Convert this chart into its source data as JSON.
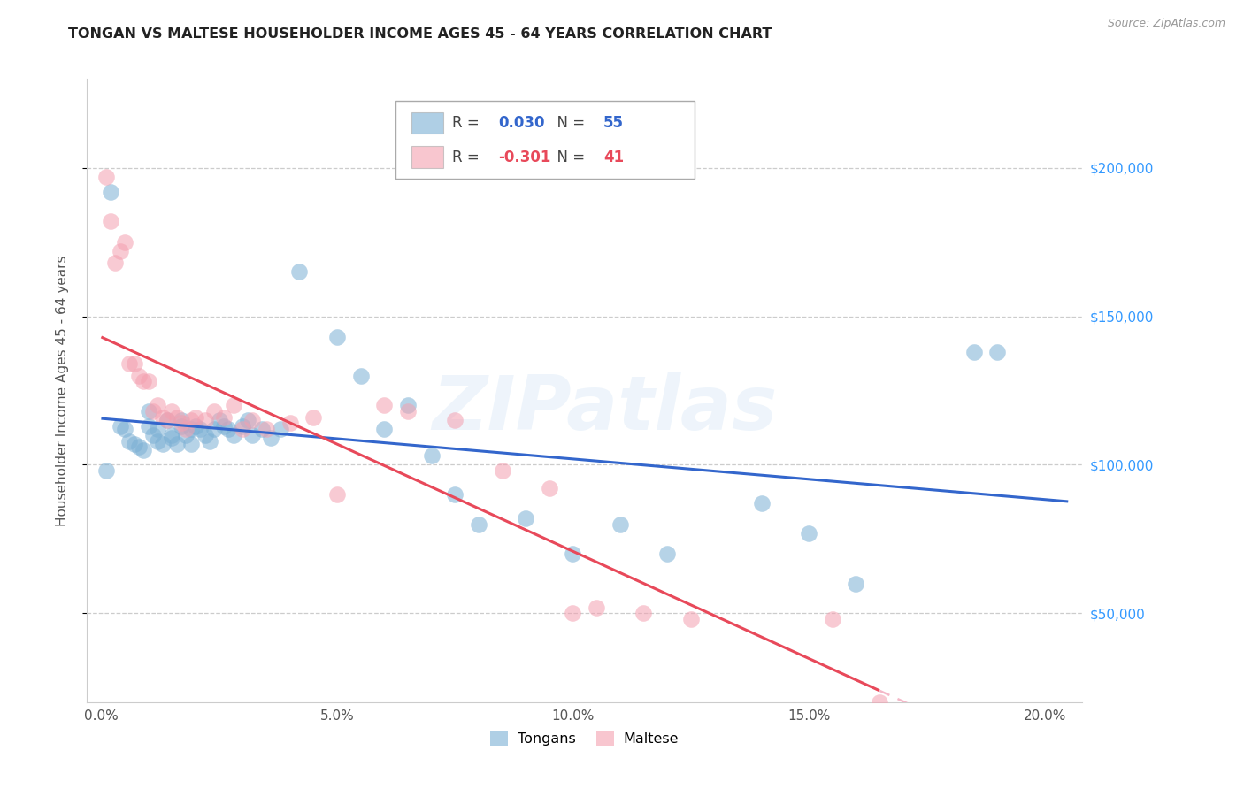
{
  "title": "TONGAN VS MALTESE HOUSEHOLDER INCOME AGES 45 - 64 YEARS CORRELATION CHART",
  "source": "Source: ZipAtlas.com",
  "xlabel_ticks": [
    "0.0%",
    "5.0%",
    "10.0%",
    "15.0%",
    "20.0%"
  ],
  "xlabel_vals": [
    0.0,
    0.05,
    0.1,
    0.15,
    0.2
  ],
  "ylabel": "Householder Income Ages 45 - 64 years",
  "ylabel_ticks": [
    "$50,000",
    "$100,000",
    "$150,000",
    "$200,000"
  ],
  "ylabel_vals": [
    50000,
    100000,
    150000,
    200000
  ],
  "ylim": [
    20000,
    230000
  ],
  "xlim": [
    -0.003,
    0.208
  ],
  "tongan_R": 0.03,
  "tongan_N": 55,
  "maltese_R": -0.301,
  "maltese_N": 41,
  "tongan_color": "#7bafd4",
  "maltese_color": "#f4a0b0",
  "tongan_line_color": "#3366cc",
  "maltese_line_color": "#e8495a",
  "maltese_dash_color": "#f4b8c8",
  "watermark": "ZIPatlas",
  "tongan_x": [
    0.001,
    0.002,
    0.004,
    0.005,
    0.006,
    0.007,
    0.008,
    0.009,
    0.01,
    0.01,
    0.011,
    0.012,
    0.012,
    0.013,
    0.014,
    0.015,
    0.015,
    0.016,
    0.017,
    0.017,
    0.018,
    0.019,
    0.019,
    0.02,
    0.021,
    0.022,
    0.023,
    0.024,
    0.025,
    0.026,
    0.027,
    0.028,
    0.03,
    0.031,
    0.032,
    0.034,
    0.036,
    0.038,
    0.042,
    0.05,
    0.055,
    0.06,
    0.065,
    0.07,
    0.075,
    0.08,
    0.09,
    0.1,
    0.11,
    0.12,
    0.14,
    0.15,
    0.16,
    0.185,
    0.19
  ],
  "tongan_y": [
    98000,
    192000,
    113000,
    112000,
    108000,
    107000,
    106000,
    105000,
    113000,
    118000,
    110000,
    108000,
    112000,
    107000,
    115000,
    109000,
    110000,
    107000,
    113000,
    115000,
    110000,
    107000,
    112000,
    113000,
    112000,
    110000,
    108000,
    112000,
    115000,
    113000,
    112000,
    110000,
    113000,
    115000,
    110000,
    112000,
    109000,
    112000,
    165000,
    143000,
    130000,
    112000,
    120000,
    103000,
    90000,
    80000,
    82000,
    70000,
    80000,
    70000,
    87000,
    77000,
    60000,
    138000,
    138000
  ],
  "maltese_x": [
    0.001,
    0.002,
    0.003,
    0.004,
    0.005,
    0.006,
    0.007,
    0.008,
    0.009,
    0.01,
    0.011,
    0.012,
    0.013,
    0.014,
    0.015,
    0.016,
    0.017,
    0.018,
    0.019,
    0.02,
    0.022,
    0.024,
    0.026,
    0.028,
    0.03,
    0.032,
    0.035,
    0.04,
    0.045,
    0.05,
    0.06,
    0.065,
    0.075,
    0.085,
    0.095,
    0.1,
    0.105,
    0.115,
    0.125,
    0.155,
    0.165
  ],
  "maltese_y": [
    197000,
    182000,
    168000,
    172000,
    175000,
    134000,
    134000,
    130000,
    128000,
    128000,
    118000,
    120000,
    116000,
    115000,
    118000,
    116000,
    114000,
    112000,
    115000,
    116000,
    115000,
    118000,
    116000,
    120000,
    112000,
    115000,
    112000,
    114000,
    116000,
    90000,
    120000,
    118000,
    115000,
    98000,
    92000,
    50000,
    52000,
    50000,
    48000,
    48000,
    20000
  ]
}
